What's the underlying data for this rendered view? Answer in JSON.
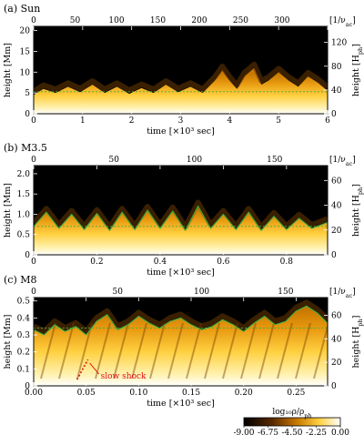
{
  "chart_data": [
    {
      "type": "heatmap",
      "panel_label": "(a) Sun",
      "xlabel": "time [×10³ sec]",
      "x_ticks": [
        "0",
        "1",
        "2",
        "3",
        "4",
        "5",
        "6"
      ],
      "xlim": [
        0,
        6
      ],
      "ylabel": "height [Mm]",
      "y_ticks": [
        "0",
        "5",
        "10",
        "15",
        "20"
      ],
      "ylim": [
        0,
        21
      ],
      "top_axis_label": "[1/ν_ac]",
      "top_ticks": [
        "0",
        "50",
        "100",
        "150",
        "200",
        "250",
        "300"
      ],
      "top_range": [
        0,
        355
      ],
      "right_axis_label": "height [H_ph]",
      "right_ticks": [
        "0",
        "40",
        "80",
        "120"
      ],
      "right_range": [
        0,
        147
      ],
      "dashed_level": 5.3,
      "shock_front": {
        "x": [
          0,
          0.2,
          0.45,
          0.7,
          0.95,
          1.2,
          1.45,
          1.7,
          1.95,
          2.2,
          2.45,
          2.7,
          2.95,
          3.2,
          3.45,
          3.7,
          3.85,
          4.0,
          4.15,
          4.3,
          4.5,
          4.65,
          4.8,
          5.0,
          5.2,
          5.4,
          5.6,
          5.8,
          6.0
        ],
        "y": [
          4.5,
          6.0,
          5.0,
          6.5,
          5.2,
          7.0,
          5.0,
          6.5,
          4.8,
          6.2,
          5.0,
          7.0,
          5.2,
          6.5,
          5.0,
          8.0,
          10.5,
          8.0,
          6.0,
          9.0,
          11.0,
          7.0,
          8.0,
          10.0,
          8.0,
          6.5,
          9.0,
          7.5,
          5.5
        ]
      }
    },
    {
      "type": "heatmap",
      "panel_label": "(b) M3.5",
      "xlabel": "time [×10³ sec]",
      "x_ticks": [
        "0",
        "0.2",
        "0.4",
        "0.6",
        "0.8"
      ],
      "xlim": [
        0,
        0.93
      ],
      "ylabel": "height [Mm]",
      "y_ticks": [
        "0",
        "0.5",
        "1.0",
        "1.5",
        "2.0"
      ],
      "ylim": [
        0,
        2.2
      ],
      "top_axis_label": "[1/ν_ac]",
      "top_ticks": [
        "0",
        "50",
        "100",
        "150"
      ],
      "top_range": [
        0,
        183
      ],
      "right_axis_label": "height [H_ph]",
      "right_ticks": [
        "0",
        "20",
        "40",
        "60"
      ],
      "right_range": [
        0,
        72
      ],
      "dashed_level": 0.7,
      "shock_front": {
        "x": [
          0,
          0.04,
          0.08,
          0.12,
          0.16,
          0.2,
          0.24,
          0.28,
          0.32,
          0.36,
          0.4,
          0.44,
          0.48,
          0.52,
          0.56,
          0.6,
          0.64,
          0.68,
          0.72,
          0.76,
          0.8,
          0.84,
          0.88,
          0.93
        ],
        "y": [
          0.7,
          1.05,
          0.65,
          1.0,
          0.62,
          1.02,
          0.6,
          1.05,
          0.62,
          1.1,
          0.65,
          1.08,
          0.6,
          1.2,
          0.65,
          1.0,
          0.62,
          1.05,
          0.6,
          0.95,
          0.62,
          0.9,
          0.65,
          0.8
        ]
      }
    },
    {
      "type": "heatmap",
      "panel_label": "(c) M8",
      "xlabel": "time [×10³ sec]",
      "x_ticks": [
        "0.00",
        "0.05",
        "0.10",
        "0.15",
        "0.20",
        "0.25"
      ],
      "xlim": [
        0,
        0.28
      ],
      "ylabel": "height [Mm]",
      "y_ticks": [
        "0",
        "0.1",
        "0.2",
        "0.3",
        "0.4",
        "0.5"
      ],
      "ylim": [
        0,
        0.52
      ],
      "top_axis_label": "[1/ν_ac]",
      "top_ticks": [
        "0",
        "50",
        "100",
        "150"
      ],
      "top_range": [
        0,
        175
      ],
      "right_axis_label": "height [H_ph]",
      "right_ticks": [
        "0",
        "20",
        "40",
        "60"
      ],
      "right_range": [
        0,
        75
      ],
      "dashed_level": 0.34,
      "annotation": "slow shock",
      "shock_front": {
        "x": [
          0,
          0.01,
          0.02,
          0.03,
          0.04,
          0.05,
          0.06,
          0.07,
          0.08,
          0.09,
          0.1,
          0.11,
          0.12,
          0.13,
          0.14,
          0.15,
          0.16,
          0.17,
          0.18,
          0.19,
          0.2,
          0.21,
          0.22,
          0.23,
          0.24,
          0.25,
          0.26,
          0.27,
          0.28
        ],
        "y": [
          0.33,
          0.3,
          0.36,
          0.32,
          0.35,
          0.3,
          0.38,
          0.42,
          0.33,
          0.36,
          0.41,
          0.37,
          0.34,
          0.38,
          0.4,
          0.36,
          0.33,
          0.35,
          0.39,
          0.36,
          0.32,
          0.37,
          0.41,
          0.36,
          0.38,
          0.44,
          0.47,
          0.43,
          0.37
        ]
      }
    }
  ],
  "colorbar": {
    "label": "log₁₀ρ/ρ_ph",
    "ticks": [
      "-9.00",
      "-6.75",
      "-4.50",
      "-2.25",
      "0.00"
    ],
    "range": [
      -9.0,
      0.0
    ]
  },
  "colors": {
    "background_dark": "#000000",
    "mid": "#c87800",
    "bright": "#ffd040",
    "photosphere": "#ffffff",
    "shock_line": "#3fae3f",
    "annotation": "#e01010"
  }
}
